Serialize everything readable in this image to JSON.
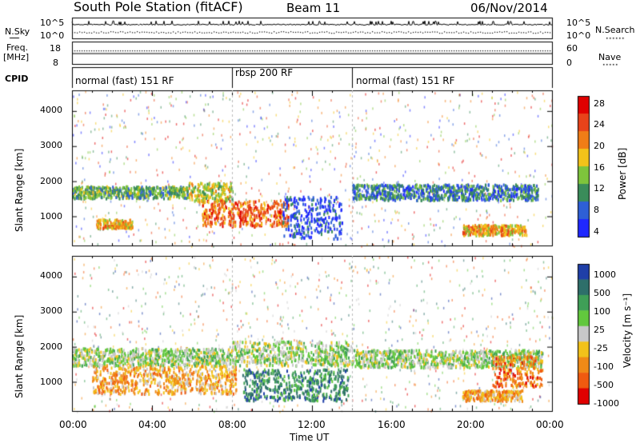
{
  "header": {
    "station": "South Pole Station (fitACF)",
    "beam": "Beam 11",
    "date": "06/Nov/2014"
  },
  "top_panels": {
    "nsky_label": "N.Sky",
    "nsky_ticks": [
      "10^5",
      "10^0"
    ],
    "nsearch_label": "N.Search",
    "nsearch_ticks": [
      "10^5",
      "10^0"
    ],
    "freq_label_1": "Freq.",
    "freq_label_2": "[MHz]",
    "freq_ticks": [
      "18",
      "8"
    ],
    "nave_label": "Nave",
    "nave_ticks": [
      "60",
      "0"
    ],
    "cpid_label": "CPID",
    "cpid_segments": [
      {
        "label": "normal (fast) 151 RF",
        "start": 0,
        "end": 8
      },
      {
        "label": "rbsp 200 RF",
        "start": 8,
        "end": 14
      },
      {
        "label": "normal (fast) 151 RF",
        "start": 14,
        "end": 24
      }
    ]
  },
  "chart_data": [
    {
      "type": "heatmap",
      "ylabel": "Slant Range [km]",
      "yticks": [
        "1000",
        "2000",
        "3000",
        "4000"
      ],
      "ylim": [
        180,
        4600
      ],
      "xlim": [
        0,
        24
      ],
      "colorbar_label": "Power [dB]",
      "colorbar_ticks": [
        "4",
        "8",
        "12",
        "16",
        "20",
        "24",
        "28"
      ],
      "colors": [
        "#1f28ff",
        "#2e5fd6",
        "#3a8c5a",
        "#7ec43c",
        "#f2c21a",
        "#f07d17",
        "#e8431a",
        "#e00000"
      ],
      "bands": [
        {
          "t0": 0.0,
          "t1": 5.8,
          "r0": 1550,
          "r1": 1900,
          "level": 3
        },
        {
          "t0": 5.8,
          "t1": 8.0,
          "r0": 1450,
          "r1": 2000,
          "level": 4
        },
        {
          "t0": 6.5,
          "t1": 10.8,
          "r0": 750,
          "r1": 1500,
          "level": 6
        },
        {
          "t0": 14.0,
          "t1": 23.3,
          "r0": 1500,
          "r1": 1950,
          "level": 2
        },
        {
          "t0": 19.5,
          "t1": 22.7,
          "r0": 500,
          "r1": 800,
          "level": 5
        },
        {
          "t0": 1.2,
          "t1": 3.0,
          "r0": 700,
          "r1": 950,
          "level": 5
        },
        {
          "t0": 10.5,
          "t1": 13.5,
          "r0": 400,
          "r1": 1600,
          "level": 1
        }
      ]
    },
    {
      "type": "heatmap",
      "ylabel": "Slant Range [km]",
      "yticks": [
        "1000",
        "2000",
        "3000",
        "4000"
      ],
      "ylim": [
        180,
        4600
      ],
      "xlim": [
        0,
        24
      ],
      "xticks": [
        "00:00",
        "04:00",
        "08:00",
        "12:00",
        "16:00",
        "20:00",
        "00:00"
      ],
      "xlabel": "Time UT",
      "colorbar_label": "Velocity [m s⁻¹]",
      "colorbar_ticks": [
        "1000",
        "500",
        "100",
        "25",
        "-25",
        "-100",
        "-500",
        "-1000"
      ],
      "colors": [
        "#1f3fa8",
        "#2e6f6a",
        "#3f9f57",
        "#62c83d",
        "#c8c8c8",
        "#f2c21a",
        "#f08a17",
        "#f05a10",
        "#e00000"
      ],
      "bands": [
        {
          "t0": 0.0,
          "t1": 8.0,
          "r0": 1500,
          "r1": 2000,
          "level": 4
        },
        {
          "t0": 8.0,
          "t1": 14.0,
          "r0": 1500,
          "r1": 2200,
          "level": 4
        },
        {
          "t0": 14.0,
          "t1": 23.5,
          "r0": 1450,
          "r1": 1950,
          "level": 4
        },
        {
          "t0": 1.0,
          "t1": 8.2,
          "r0": 700,
          "r1": 1500,
          "level": 6
        },
        {
          "t0": 8.5,
          "t1": 13.8,
          "r0": 500,
          "r1": 1400,
          "level": 2
        },
        {
          "t0": 19.5,
          "t1": 22.5,
          "r0": 500,
          "r1": 800,
          "level": 6
        },
        {
          "t0": 21.0,
          "t1": 23.5,
          "r0": 900,
          "r1": 1800,
          "level": 7
        }
      ]
    }
  ]
}
